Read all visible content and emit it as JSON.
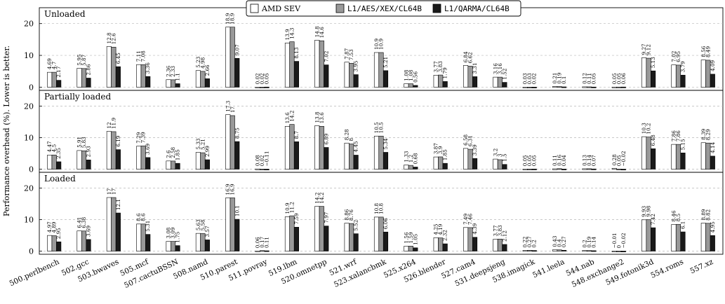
{
  "chart_data": {
    "type": "bar",
    "ylabel": "Performance overhead (%). Lower is better.",
    "ylim": [
      -1,
      25
    ],
    "yticks": [
      0,
      10,
      20
    ],
    "grid": "dashed horizontal",
    "legend_position": "top-center",
    "categories": [
      "500.perlbench",
      "502.gcc",
      "503.bwaves",
      "505.mcf",
      "507.cactuBSSN",
      "508.namd",
      "510.parest",
      "511.povray",
      "519.lbm",
      "520.omnetpp",
      "521.wrf",
      "523.xalancbmk",
      "525.x264",
      "526.blender",
      "527.cam4",
      "531.deepsjeng",
      "538.imagick",
      "541.leela",
      "544.nab",
      "548.exchange2",
      "549.fotonik3d",
      "554.roms",
      "557.xz"
    ],
    "series": [
      {
        "name": "AMD SEV",
        "color": "#ffffff"
      },
      {
        "name": "L1/AES/XEX/CL64B",
        "color": "#999999"
      },
      {
        "name": "L1/QARMA/CL64B",
        "color": "#1a1a1a"
      }
    ],
    "panels": [
      {
        "name": "Unloaded",
        "values": [
          [
            4.69,
            5.95,
            12.8,
            7.11,
            2.36,
            5.23,
            18.9,
            0.02,
            13.9,
            14.8,
            7.87,
            10.9,
            1.08,
            3.77,
            6.84,
            3.16,
            0.03,
            0.21,
            0.12,
            0.05,
            9.27,
            7.02,
            8.56
          ],
          [
            4.7,
            5.87,
            12.6,
            7.08,
            2.33,
            4.98,
            18.9,
            0.02,
            14.3,
            14.6,
            7.53,
            10.9,
            1.08,
            3.83,
            6.62,
            3.16,
            0.03,
            0.19,
            0.11,
            0.05,
            9.12,
            6.95,
            8.49
          ],
          [
            2.17,
            2.86,
            6.45,
            3.36,
            1.1,
            2.66,
            9.07,
            0.05,
            8.13,
            7.02,
            3.95,
            5.21,
            0.56,
            1.79,
            3.31,
            1.52,
            0.02,
            0.1,
            0.05,
            0.06,
            5.13,
            3.79,
            4.09
          ]
        ]
      },
      {
        "name": "Partially loaded",
        "values": [
          [
            4.47,
            5.91,
            12,
            7.29,
            2.6,
            5.33,
            17.3,
            0.08,
            13.6,
            13.8,
            8.28,
            10.5,
            1.33,
            3.87,
            6.58,
            3.2,
            0.05,
            0.11,
            0.13,
            0.28,
            10.3,
            7.86,
            8.39
          ],
          [
            4.5,
            5.83,
            11.9,
            7.39,
            2.58,
            5.21,
            17,
            0.02,
            14.2,
            13.6,
            8,
            10.5,
            1.2,
            3.9,
            6.31,
            3,
            0.05,
            0.16,
            0.14,
            0.05,
            10.2,
            7.86,
            8.29
          ],
          [
            2.35,
            2.93,
            6.19,
            3.69,
            1.85,
            2.99,
            8.75,
            -0.11,
            8.7,
            6.89,
            4.45,
            5.34,
            0.68,
            1.85,
            3.39,
            1.5,
            0.05,
            0.04,
            0.07,
            -0.02,
            6.48,
            5.15,
            4.14
          ]
        ]
      },
      {
        "name": "Loaded",
        "values": [
          [
            4.97,
            6.41,
            17,
            8.6,
            3.08,
            5.63,
            16.9,
            0.06,
            10.9,
            14.2,
            8.86,
            10.8,
            1.56,
            4.25,
            7.49,
            3.77,
            0.22,
            0.43,
            0.2,
            -0.01,
            9.93,
            8.46,
            8.89
          ],
          [
            4.89,
            6.38,
            17,
            8.6,
            3.09,
            5.58,
            16.9,
            0.17,
            11.2,
            14.2,
            8.76,
            10.8,
            1.59,
            4.19,
            7.46,
            3.83,
            0.27,
            0.4,
            0.19,
            0,
            9.98,
            8.5,
            8.82
          ],
          [
            2.95,
            3.69,
            12.1,
            5.31,
            1.75,
            3.57,
            10.1,
            0.11,
            7.59,
            7.97,
            5.52,
            6.06,
            1.05,
            2.32,
            4.39,
            2.12,
            0.2,
            0.27,
            0.14,
            -0.02,
            7.42,
            6.1,
            4.95
          ]
        ]
      }
    ]
  }
}
